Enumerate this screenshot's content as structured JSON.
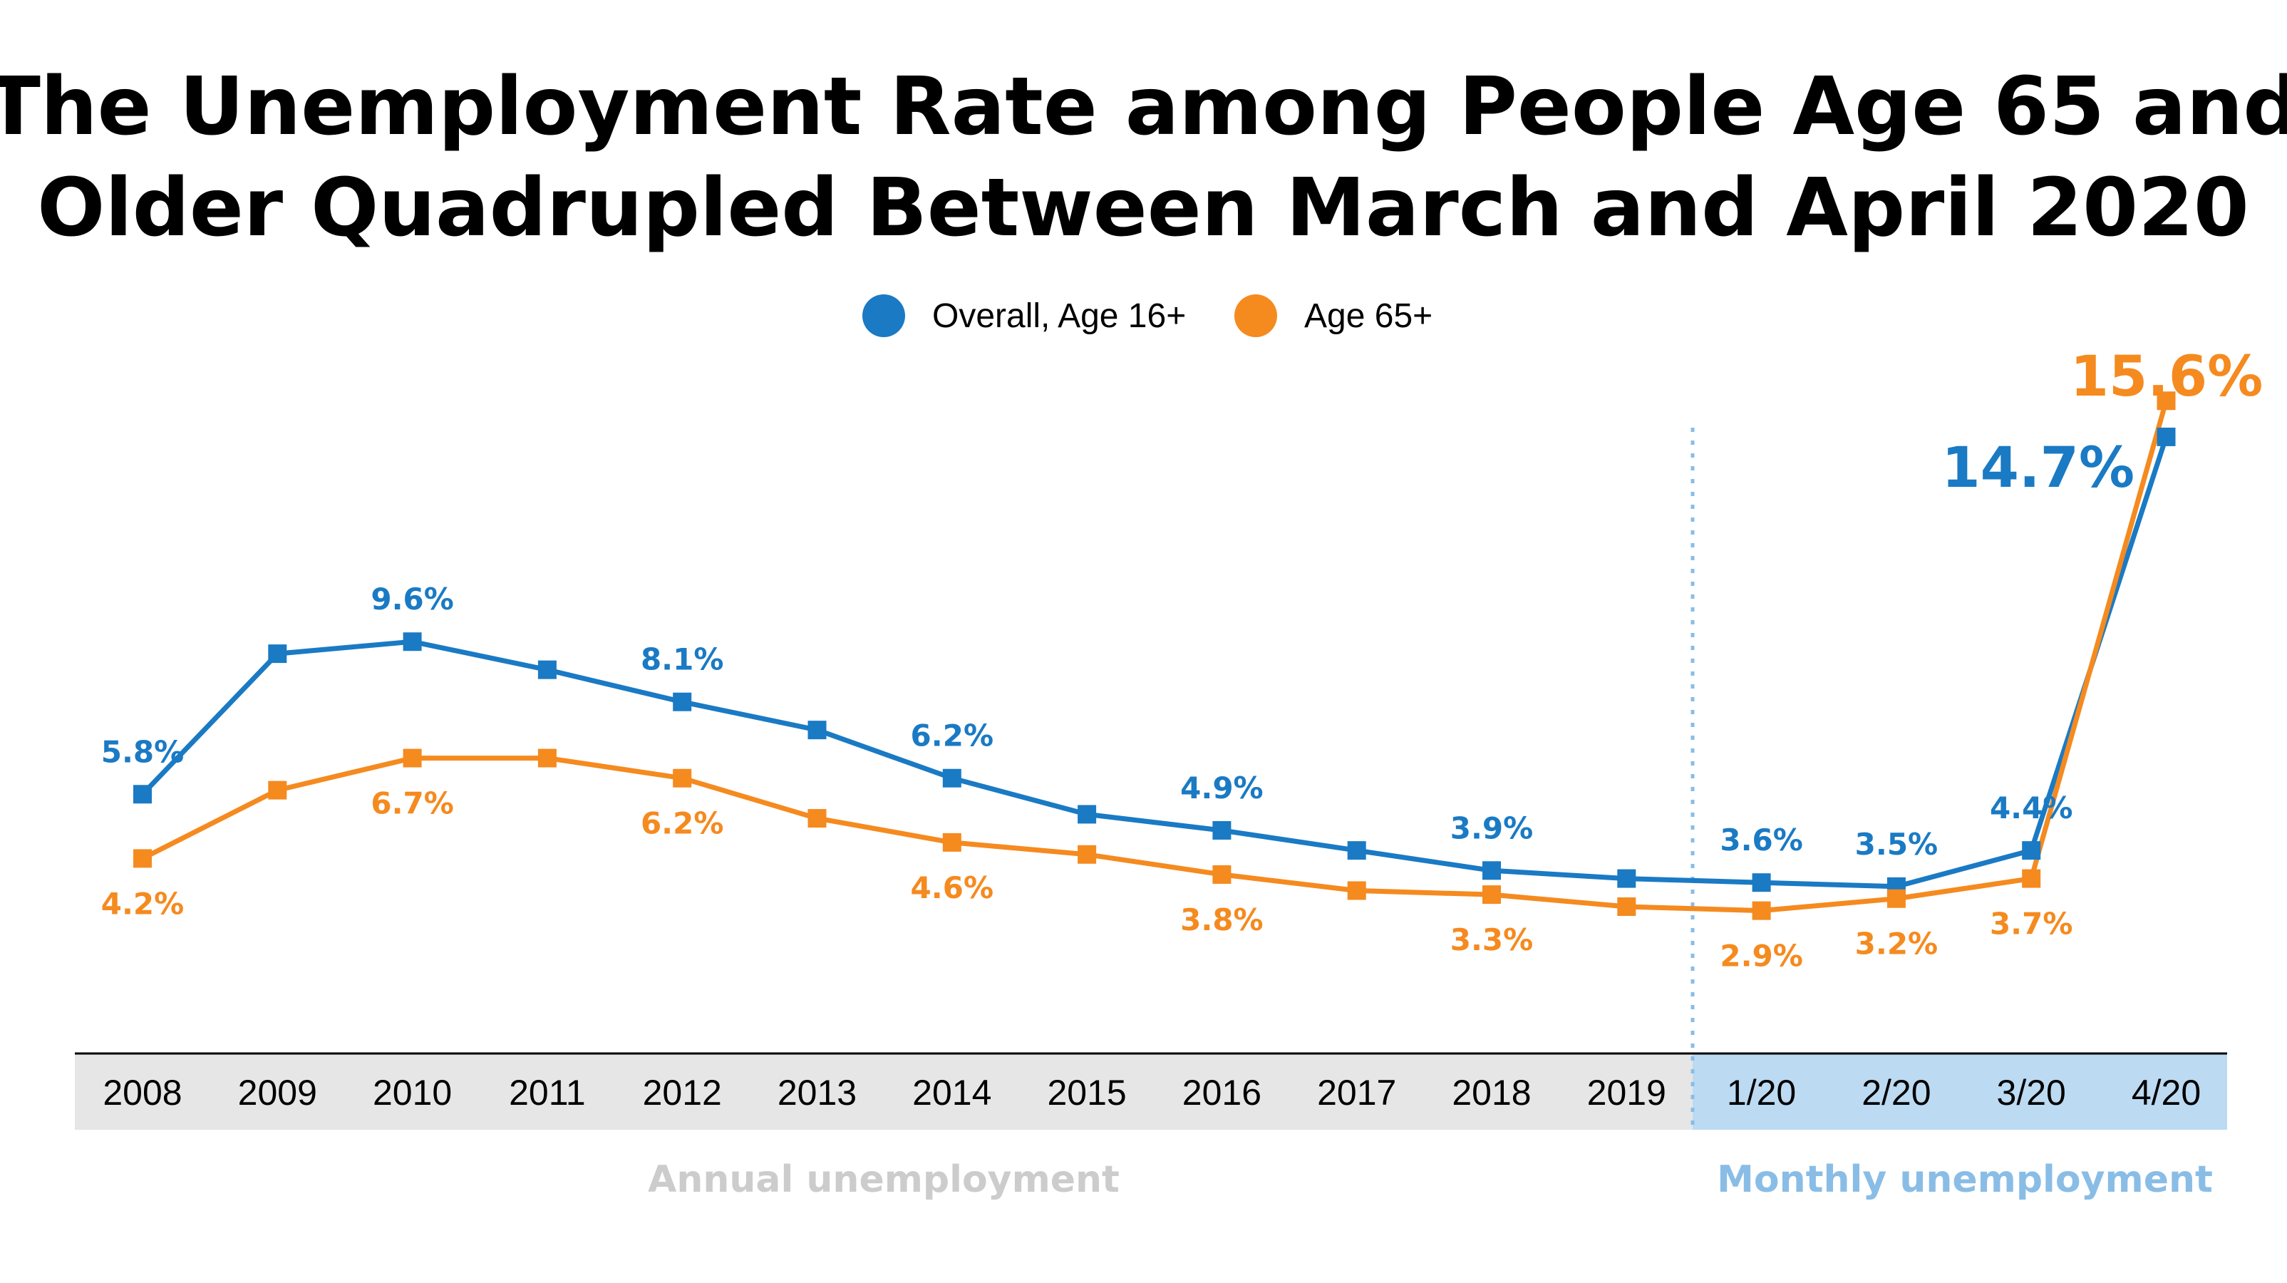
{
  "title_line1": "The Unemployment Rate among People Age 65 and",
  "title_line2": "Older Quadrupled Between March and April 2020",
  "section_labels": {
    "annual": "Annual unemployment",
    "monthly": "Monthly unemployment"
  },
  "colors": {
    "overall": "#1a7ac4",
    "age65": "#f58a1f",
    "annual_band": "#e6e6e6",
    "monthly_band": "#bcdaf2",
    "annual_label": "#cccccc",
    "monthly_label": "#89bde6",
    "divider": "#89bde6"
  },
  "chart_data": {
    "type": "line",
    "title": "The Unemployment Rate among People Age 65 and Older Quadrupled Between March and April 2020",
    "categories": [
      "2008",
      "2009",
      "2010",
      "2011",
      "2012",
      "2013",
      "2014",
      "2015",
      "2016",
      "2017",
      "2018",
      "2019",
      "1/20",
      "2/20",
      "3/20",
      "4/20"
    ],
    "series": [
      {
        "name": "Overall, Age 16+",
        "values": [
          5.8,
          9.3,
          9.6,
          8.9,
          8.1,
          7.4,
          6.2,
          5.3,
          4.9,
          4.4,
          3.9,
          3.7,
          3.6,
          3.5,
          4.4,
          14.7
        ],
        "labels": [
          "5.8%",
          "",
          "9.6%",
          "",
          "8.1%",
          "",
          "6.2%",
          "",
          "4.9%",
          "",
          "3.9%",
          "",
          "3.6%",
          "3.5%",
          "4.4%",
          "14.7%"
        ]
      },
      {
        "name": "Age 65+",
        "values": [
          4.2,
          5.9,
          6.7,
          6.7,
          6.2,
          5.2,
          4.6,
          4.3,
          3.8,
          3.4,
          3.3,
          3.0,
          2.9,
          3.2,
          3.7,
          15.6
        ],
        "labels": [
          "4.2%",
          "",
          "6.7%",
          "",
          "6.2%",
          "",
          "4.6%",
          "",
          "3.8%",
          "",
          "3.3%",
          "",
          "2.9%",
          "3.2%",
          "3.7%",
          "15.6%"
        ]
      }
    ],
    "xlabel": "",
    "ylabel": "",
    "grid": false,
    "legend": "top-center"
  }
}
